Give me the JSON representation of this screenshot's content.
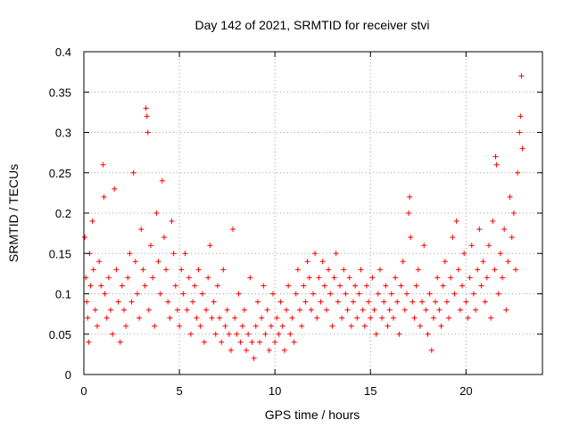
{
  "chart_data": {
    "type": "scatter",
    "title": "Day 142 of 2021, SRMTID for receiver stvi",
    "xlabel": "GPS time / hours",
    "ylabel": "SRMTID / TECUs",
    "xlim": [
      0,
      24
    ],
    "ylim": [
      0,
      0.4
    ],
    "x_ticks": [
      0,
      5,
      10,
      15,
      20
    ],
    "y_ticks": [
      0,
      0.05,
      0.1,
      0.15,
      0.2,
      0.25,
      0.3,
      0.35,
      0.4
    ],
    "x_tick_labels": [
      "0",
      "5",
      "10",
      "15",
      "20"
    ],
    "y_tick_labels": [
      "0",
      "0.05",
      "0.1",
      "0.15",
      "0.2",
      "0.25",
      "0.3",
      "0.35",
      "0.4"
    ],
    "grid": true,
    "marker": "+",
    "marker_color": "#ff0000",
    "series": [
      {
        "name": "SRMTID",
        "points": [
          [
            0.05,
            0.17
          ],
          [
            0.1,
            0.12
          ],
          [
            0.15,
            0.09
          ],
          [
            0.2,
            0.07
          ],
          [
            0.25,
            0.04
          ],
          [
            0.3,
            0.15
          ],
          [
            0.35,
            0.11
          ],
          [
            0.45,
            0.19
          ],
          [
            0.5,
            0.13
          ],
          [
            0.6,
            0.08
          ],
          [
            0.7,
            0.06
          ],
          [
            0.8,
            0.14
          ],
          [
            0.9,
            0.11
          ],
          [
            1.0,
            0.26
          ],
          [
            1.05,
            0.22
          ],
          [
            1.1,
            0.1
          ],
          [
            1.2,
            0.07
          ],
          [
            1.3,
            0.12
          ],
          [
            1.4,
            0.08
          ],
          [
            1.5,
            0.05
          ],
          [
            1.6,
            0.23
          ],
          [
            1.7,
            0.13
          ],
          [
            1.8,
            0.09
          ],
          [
            1.9,
            0.04
          ],
          [
            2.0,
            0.11
          ],
          [
            2.1,
            0.08
          ],
          [
            2.2,
            0.06
          ],
          [
            2.3,
            0.12
          ],
          [
            2.4,
            0.15
          ],
          [
            2.5,
            0.09
          ],
          [
            2.6,
            0.25
          ],
          [
            2.7,
            0.14
          ],
          [
            2.8,
            0.1
          ],
          [
            2.9,
            0.07
          ],
          [
            3.0,
            0.18
          ],
          [
            3.1,
            0.13
          ],
          [
            3.2,
            0.11
          ],
          [
            3.25,
            0.33
          ],
          [
            3.3,
            0.32
          ],
          [
            3.35,
            0.3
          ],
          [
            3.4,
            0.08
          ],
          [
            3.5,
            0.16
          ],
          [
            3.6,
            0.12
          ],
          [
            3.7,
            0.06
          ],
          [
            3.8,
            0.2
          ],
          [
            3.9,
            0.14
          ],
          [
            4.0,
            0.1
          ],
          [
            4.1,
            0.24
          ],
          [
            4.2,
            0.17
          ],
          [
            4.3,
            0.13
          ],
          [
            4.4,
            0.09
          ],
          [
            4.5,
            0.07
          ],
          [
            4.6,
            0.19
          ],
          [
            4.7,
            0.15
          ],
          [
            4.8,
            0.11
          ],
          [
            4.9,
            0.08
          ],
          [
            5.0,
            0.06
          ],
          [
            5.1,
            0.13
          ],
          [
            5.2,
            0.1
          ],
          [
            5.3,
            0.15
          ],
          [
            5.4,
            0.08
          ],
          [
            5.5,
            0.12
          ],
          [
            5.6,
            0.05
          ],
          [
            5.7,
            0.09
          ],
          [
            5.8,
            0.11
          ],
          [
            5.9,
            0.07
          ],
          [
            6.0,
            0.13
          ],
          [
            6.1,
            0.06
          ],
          [
            6.2,
            0.1
          ],
          [
            6.3,
            0.04
          ],
          [
            6.4,
            0.08
          ],
          [
            6.5,
            0.12
          ],
          [
            6.6,
            0.16
          ],
          [
            6.7,
            0.07
          ],
          [
            6.8,
            0.09
          ],
          [
            6.9,
            0.05
          ],
          [
            7.0,
            0.11
          ],
          [
            7.1,
            0.07
          ],
          [
            7.2,
            0.04
          ],
          [
            7.3,
            0.13
          ],
          [
            7.4,
            0.06
          ],
          [
            7.5,
            0.08
          ],
          [
            7.6,
            0.05
          ],
          [
            7.7,
            0.03
          ],
          [
            7.8,
            0.18
          ],
          [
            7.9,
            0.07
          ],
          [
            8.0,
            0.05
          ],
          [
            8.1,
            0.1
          ],
          [
            8.2,
            0.04
          ],
          [
            8.3,
            0.06
          ],
          [
            8.4,
            0.08
          ],
          [
            8.5,
            0.03
          ],
          [
            8.6,
            0.05
          ],
          [
            8.7,
            0.12
          ],
          [
            8.8,
            0.04
          ],
          [
            8.9,
            0.02
          ],
          [
            9.0,
            0.06
          ],
          [
            9.1,
            0.09
          ],
          [
            9.2,
            0.04
          ],
          [
            9.3,
            0.07
          ],
          [
            9.4,
            0.11
          ],
          [
            9.5,
            0.05
          ],
          [
            9.6,
            0.08
          ],
          [
            9.7,
            0.03
          ],
          [
            9.8,
            0.06
          ],
          [
            9.9,
            0.1
          ],
          [
            10.0,
            0.04
          ],
          [
            10.1,
            0.07
          ],
          [
            10.2,
            0.05
          ],
          [
            10.3,
            0.09
          ],
          [
            10.4,
            0.06
          ],
          [
            10.5,
            0.03
          ],
          [
            10.6,
            0.08
          ],
          [
            10.7,
            0.11
          ],
          [
            10.8,
            0.05
          ],
          [
            10.9,
            0.07
          ],
          [
            11.0,
            0.04
          ],
          [
            11.1,
            0.1
          ],
          [
            11.2,
            0.13
          ],
          [
            11.3,
            0.08
          ],
          [
            11.4,
            0.06
          ],
          [
            11.5,
            0.11
          ],
          [
            11.6,
            0.09
          ],
          [
            11.7,
            0.14
          ],
          [
            11.8,
            0.12
          ],
          [
            11.9,
            0.08
          ],
          [
            12.0,
            0.1
          ],
          [
            12.1,
            0.15
          ],
          [
            12.2,
            0.07
          ],
          [
            12.3,
            0.12
          ],
          [
            12.4,
            0.09
          ],
          [
            12.5,
            0.14
          ],
          [
            12.6,
            0.11
          ],
          [
            12.7,
            0.08
          ],
          [
            12.8,
            0.13
          ],
          [
            12.9,
            0.1
          ],
          [
            13.0,
            0.06
          ],
          [
            13.1,
            0.12
          ],
          [
            13.2,
            0.15
          ],
          [
            13.3,
            0.09
          ],
          [
            13.4,
            0.11
          ],
          [
            13.5,
            0.07
          ],
          [
            13.6,
            0.13
          ],
          [
            13.7,
            0.1
          ],
          [
            13.8,
            0.08
          ],
          [
            13.9,
            0.12
          ],
          [
            14.0,
            0.06
          ],
          [
            14.1,
            0.09
          ],
          [
            14.2,
            0.11
          ],
          [
            14.3,
            0.07
          ],
          [
            14.4,
            0.1
          ],
          [
            14.5,
            0.13
          ],
          [
            14.6,
            0.08
          ],
          [
            14.7,
            0.06
          ],
          [
            14.8,
            0.11
          ],
          [
            14.9,
            0.09
          ],
          [
            15.0,
            0.07
          ],
          [
            15.1,
            0.12
          ],
          [
            15.2,
            0.08
          ],
          [
            15.3,
            0.05
          ],
          [
            15.4,
            0.1
          ],
          [
            15.5,
            0.13
          ],
          [
            15.6,
            0.07
          ],
          [
            15.7,
            0.09
          ],
          [
            15.8,
            0.11
          ],
          [
            15.9,
            0.06
          ],
          [
            16.0,
            0.08
          ],
          [
            16.1,
            0.1
          ],
          [
            16.2,
            0.07
          ],
          [
            16.3,
            0.12
          ],
          [
            16.4,
            0.09
          ],
          [
            16.5,
            0.05
          ],
          [
            16.6,
            0.11
          ],
          [
            16.7,
            0.14
          ],
          [
            16.8,
            0.08
          ],
          [
            16.9,
            0.1
          ],
          [
            17.0,
            0.2
          ],
          [
            17.05,
            0.22
          ],
          [
            17.1,
            0.17
          ],
          [
            17.2,
            0.09
          ],
          [
            17.3,
            0.07
          ],
          [
            17.4,
            0.11
          ],
          [
            17.5,
            0.13
          ],
          [
            17.6,
            0.06
          ],
          [
            17.7,
            0.09
          ],
          [
            17.8,
            0.16
          ],
          [
            17.9,
            0.08
          ],
          [
            18.0,
            0.05
          ],
          [
            18.1,
            0.1
          ],
          [
            18.2,
            0.03
          ],
          [
            18.3,
            0.07
          ],
          [
            18.4,
            0.09
          ],
          [
            18.5,
            0.12
          ],
          [
            18.6,
            0.08
          ],
          [
            18.7,
            0.06
          ],
          [
            18.8,
            0.11
          ],
          [
            18.9,
            0.14
          ],
          [
            19.0,
            0.09
          ],
          [
            19.1,
            0.07
          ],
          [
            19.2,
            0.12
          ],
          [
            19.3,
            0.17
          ],
          [
            19.4,
            0.1
          ],
          [
            19.5,
            0.19
          ],
          [
            19.6,
            0.13
          ],
          [
            19.7,
            0.08
          ],
          [
            19.8,
            0.11
          ],
          [
            19.9,
            0.15
          ],
          [
            20.0,
            0.09
          ],
          [
            20.1,
            0.07
          ],
          [
            20.2,
            0.12
          ],
          [
            20.3,
            0.16
          ],
          [
            20.4,
            0.1
          ],
          [
            20.5,
            0.08
          ],
          [
            20.6,
            0.13
          ],
          [
            20.7,
            0.18
          ],
          [
            20.8,
            0.11
          ],
          [
            20.9,
            0.14
          ],
          [
            21.0,
            0.09
          ],
          [
            21.1,
            0.12
          ],
          [
            21.2,
            0.16
          ],
          [
            21.3,
            0.07
          ],
          [
            21.4,
            0.19
          ],
          [
            21.5,
            0.13
          ],
          [
            21.55,
            0.27
          ],
          [
            21.6,
            0.26
          ],
          [
            21.7,
            0.1
          ],
          [
            21.8,
            0.15
          ],
          [
            21.9,
            0.12
          ],
          [
            22.0,
            0.18
          ],
          [
            22.1,
            0.08
          ],
          [
            22.2,
            0.14
          ],
          [
            22.3,
            0.22
          ],
          [
            22.4,
            0.17
          ],
          [
            22.5,
            0.2
          ],
          [
            22.6,
            0.13
          ],
          [
            22.7,
            0.25
          ],
          [
            22.8,
            0.3
          ],
          [
            22.85,
            0.32
          ],
          [
            22.9,
            0.37
          ],
          [
            22.95,
            0.28
          ]
        ]
      }
    ]
  }
}
